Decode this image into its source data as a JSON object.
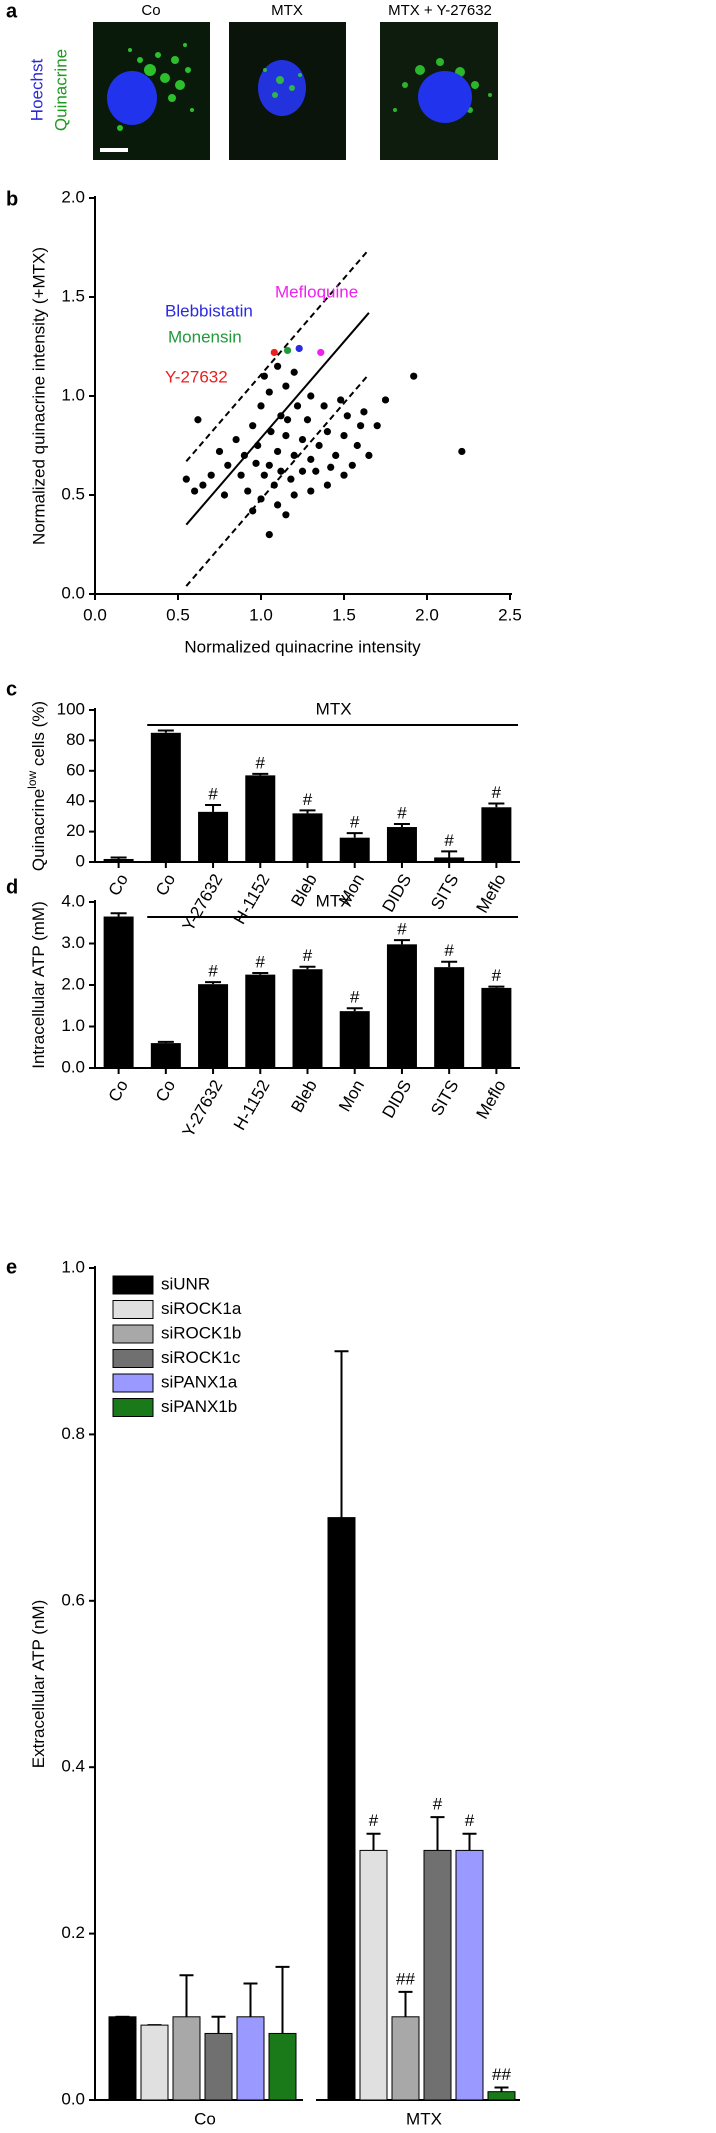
{
  "panel_a": {
    "label": "a",
    "images": [
      "Co",
      "MTX",
      "MTX + Y-27632"
    ],
    "stain_labels": [
      "Hoechst",
      "Quinacrine"
    ]
  },
  "chart_data": [
    {
      "type": "scatter",
      "label": "b",
      "xlabel": "Normalized quinacrine intensity",
      "ylabel": "Normalized quinacrine intensity (+MTX)",
      "xlim": [
        0,
        2.5
      ],
      "ylim": [
        0,
        2.0
      ],
      "xticks": [
        {
          "value": 0,
          "label": "0.0"
        },
        {
          "value": 0.5,
          "label": "0.5"
        },
        {
          "value": 1,
          "label": "1.0"
        },
        {
          "value": 1.5,
          "label": "1.5"
        },
        {
          "value": 2,
          "label": "2.0"
        },
        {
          "value": 2.5,
          "label": "2.5"
        }
      ],
      "yticks": [
        {
          "value": 0,
          "label": "0.0"
        },
        {
          "value": 0.5,
          "label": "0.5"
        },
        {
          "value": 1,
          "label": "1.0"
        },
        {
          "value": 1.5,
          "label": "1.5"
        },
        {
          "value": 2,
          "label": "2.0"
        }
      ],
      "color": "#000000",
      "x": [
        1.1,
        1.05,
        1.15,
        1.2,
        0.98,
        1.02,
        1.25,
        1.3,
        0.95,
        1.12,
        1.08,
        1.18,
        1.35,
        1.4,
        0.9,
        0.88,
        1.0,
        1.22,
        1.28,
        1.45,
        1.5,
        1.55,
        1.6,
        0.85,
        0.8,
        0.75,
        0.7,
        0.65,
        0.62,
        0.55,
        1.05,
        1.15,
        1.3,
        1.38,
        1.48,
        1.62,
        1.7,
        1.75,
        1.92,
        2.21,
        1.1,
        1.0,
        1.2,
        1.3,
        0.95,
        1.05,
        1.15,
        1.4,
        1.5,
        1.58,
        0.78,
        0.92,
        1.12,
        1.25,
        1.33,
        1.42,
        0.97,
        1.06,
        1.16,
        1.1,
        1.02,
        1.2,
        0.6,
        1.65,
        1.52
      ],
      "y": [
        0.72,
        0.65,
        0.8,
        0.7,
        0.75,
        0.6,
        0.78,
        0.68,
        0.85,
        0.9,
        0.55,
        0.58,
        0.75,
        0.82,
        0.7,
        0.6,
        0.95,
        0.95,
        0.88,
        0.7,
        0.8,
        0.65,
        0.85,
        0.78,
        0.65,
        0.72,
        0.6,
        0.55,
        0.88,
        0.58,
        1.02,
        1.05,
        1.0,
        0.95,
        0.98,
        0.92,
        0.85,
        0.98,
        1.1,
        0.72,
        0.45,
        0.48,
        0.5,
        0.52,
        0.42,
        0.3,
        0.4,
        0.55,
        0.6,
        0.75,
        0.5,
        0.52,
        0.62,
        0.62,
        0.62,
        0.64,
        0.66,
        0.82,
        0.88,
        1.15,
        1.1,
        1.12,
        0.52,
        0.7,
        0.9
      ],
      "highlights": [
        {
          "name": "Mefloquine",
          "color": "#ee22ee",
          "x": 1.36,
          "y": 1.22
        },
        {
          "name": "Blebbistatin",
          "color": "#2a2ae0",
          "x": 1.23,
          "y": 1.24
        },
        {
          "name": "Monensin",
          "color": "#1f9a3a",
          "x": 1.16,
          "y": 1.23
        },
        {
          "name": "Y-27632",
          "color": "#e82020",
          "x": 1.08,
          "y": 1.22
        }
      ],
      "lines": [
        {
          "style": "solid",
          "x": [
            0.55,
            1.65
          ],
          "y": [
            0.35,
            1.42
          ]
        },
        {
          "style": "dashed",
          "x": [
            0.55,
            1.65
          ],
          "y": [
            0.67,
            1.74
          ]
        },
        {
          "style": "dashed",
          "x": [
            0.55,
            1.65
          ],
          "y": [
            0.04,
            1.11
          ]
        }
      ]
    },
    {
      "type": "bar",
      "label": "c",
      "ylabel": [
        "Quinacrine",
        "low",
        " cells (%)"
      ],
      "group_label": "MTX",
      "categories": [
        "Co",
        "Co",
        "Y-27632",
        "H-1152",
        "Bleb",
        "Mon",
        "DIDS",
        "SITS",
        "Meflo"
      ],
      "values": [
        2,
        85,
        33,
        57,
        32,
        16,
        23,
        3,
        36
      ],
      "errors": [
        1,
        1.5,
        4.5,
        1,
        2,
        3,
        2,
        4,
        2.5
      ],
      "annotations": [
        null,
        null,
        "#",
        "#",
        "#",
        "#",
        "#",
        "#",
        "#"
      ],
      "color": "#000000",
      "ylim": [
        0,
        100
      ],
      "yticks": [
        0,
        20,
        40,
        60,
        80,
        100
      ]
    },
    {
      "type": "bar",
      "label": "d",
      "ylabel": [
        "Intracellular ATP (mM)"
      ],
      "group_label": "MTX",
      "categories": [
        "Co",
        "Co",
        "Y-27632",
        "H-1152",
        "Bleb",
        "Mon",
        "DIDS",
        "SITS",
        "Meflo"
      ],
      "values": [
        3.65,
        0.6,
        2.02,
        2.25,
        2.38,
        1.37,
        2.98,
        2.43,
        1.93
      ],
      "errors": [
        0.08,
        0.03,
        0.05,
        0.04,
        0.06,
        0.07,
        0.1,
        0.13,
        0.03
      ],
      "annotations": [
        null,
        null,
        "#",
        "#",
        "#",
        "#",
        "#",
        "#",
        "#"
      ],
      "color": "#000000",
      "ylim": [
        0,
        4
      ],
      "yticks": [
        {
          "value": 0,
          "label": "0.0"
        },
        {
          "value": 1,
          "label": "1.0"
        },
        {
          "value": 2,
          "label": "2.0"
        },
        {
          "value": 3,
          "label": "3.0"
        },
        {
          "value": 4,
          "label": "4.0"
        }
      ]
    },
    {
      "type": "grouped_bar",
      "label": "e",
      "ylabel": [
        "Extracellular ATP (nM)"
      ],
      "categories": [
        "Co",
        "MTX"
      ],
      "ylim": [
        0,
        1.0
      ],
      "yticks": [
        {
          "value": 0,
          "label": "0.0"
        },
        {
          "value": 0.2,
          "label": "0.2"
        },
        {
          "value": 0.4,
          "label": "0.4"
        },
        {
          "value": 0.6,
          "label": "0.6"
        },
        {
          "value": 0.8,
          "label": "0.8"
        },
        {
          "value": 1,
          "label": "1.0"
        }
      ],
      "series": [
        {
          "name": "siUNR",
          "color": "#000000",
          "values": [
            0.1,
            0.7
          ],
          "errors": [
            0,
            0.2
          ],
          "annotations": [
            null,
            null
          ]
        },
        {
          "name": "siROCK1a",
          "color": "#e0e0e0",
          "values": [
            0.09,
            0.3
          ],
          "errors": [
            0,
            0.02
          ],
          "annotations": [
            null,
            "#"
          ]
        },
        {
          "name": "siROCK1b",
          "color": "#a8a8a8",
          "values": [
            0.1,
            0.1
          ],
          "errors": [
            0.05,
            0.03
          ],
          "annotations": [
            null,
            "##"
          ]
        },
        {
          "name": "siROCK1c",
          "color": "#707070",
          "values": [
            0.08,
            0.3
          ],
          "errors": [
            0.02,
            0.04
          ],
          "annotations": [
            null,
            "#"
          ]
        },
        {
          "name": "siPANX1a",
          "color": "#9999ff",
          "values": [
            0.1,
            0.3
          ],
          "errors": [
            0.04,
            0.02
          ],
          "annotations": [
            null,
            "#"
          ]
        },
        {
          "name": "siPANX1b",
          "color": "#1a7a1a",
          "values": [
            0.08,
            0.01
          ],
          "errors": [
            0.08,
            0.005
          ],
          "annotations": [
            null,
            "##"
          ]
        }
      ]
    }
  ]
}
